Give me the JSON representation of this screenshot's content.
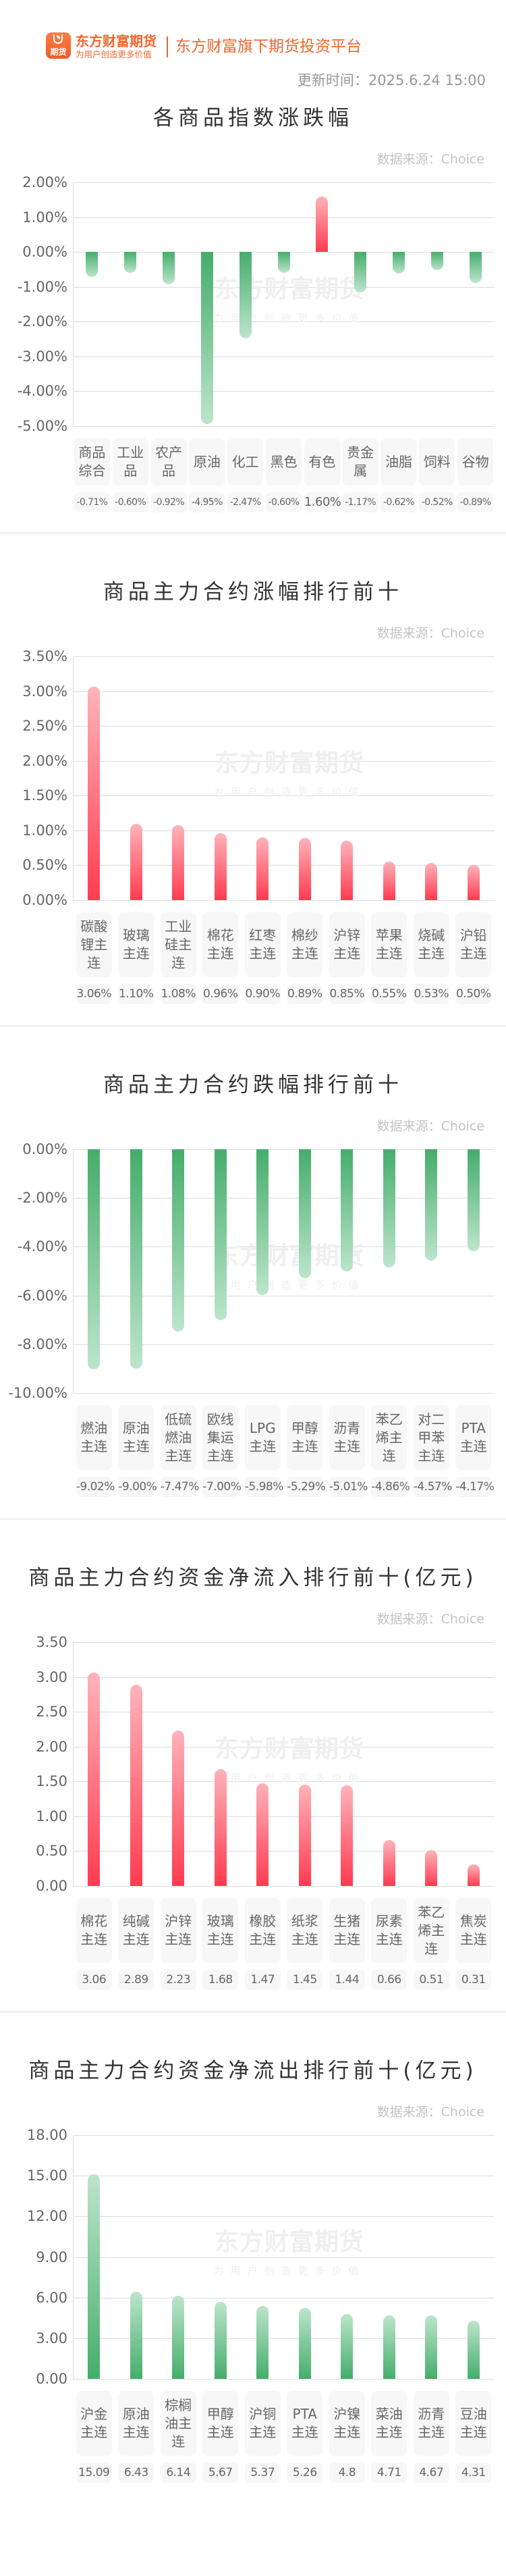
{
  "header": {
    "logo_icon_text": "期货",
    "brand_name": "东方财富期货",
    "brand_slogan": "为用户创造更多价值",
    "platform": "东方财富旗下期货投资平台",
    "update_time": "更新时间：2025.6.24 15:00"
  },
  "watermark": {
    "main": "东方财富期货",
    "sub": "为用户创造更多价值"
  },
  "colors": {
    "up": "#ff3b50",
    "up_light": "#ffb3bb",
    "down": "#45ad6b",
    "down_light": "#bde5cc",
    "brand": "#f2652f"
  },
  "chart_data": [
    {
      "type": "bar",
      "title": "各商品指数涨跌幅",
      "source": "数据来源：Choice",
      "ylim": [
        -5,
        2
      ],
      "yticks": [
        2,
        1,
        0,
        -1,
        -2,
        -3,
        -4,
        -5
      ],
      "ytick_labels": [
        "2.00%",
        "1.00%",
        "0.00%",
        "-1.00%",
        "-2.00%",
        "-3.00%",
        "-4.00%",
        "-5.00%"
      ],
      "categories": [
        "商品综合",
        "工业品",
        "农产品",
        "原油",
        "化工",
        "黑色",
        "有色",
        "贵金属",
        "油脂",
        "饲料",
        "谷物"
      ],
      "values": [
        -0.71,
        -0.6,
        -0.92,
        -4.95,
        -2.47,
        -0.6,
        1.6,
        -1.17,
        -0.62,
        -0.52,
        -0.89
      ],
      "value_labels": [
        "-0.71%",
        "-0.60%",
        "-0.92%",
        "-4.95%",
        "-2.47%",
        "-0.60%",
        "1.60%",
        "-1.17%",
        "-0.62%",
        "-0.52%",
        "-0.89%"
      ],
      "grid": true
    },
    {
      "type": "bar",
      "title": "商品主力合约涨幅排行前十",
      "source": "数据来源：Choice",
      "ylim": [
        0,
        3.5
      ],
      "yticks": [
        3.5,
        3,
        2.5,
        2,
        1.5,
        1,
        0.5,
        0
      ],
      "ytick_labels": [
        "3.50%",
        "3.00%",
        "2.50%",
        "2.00%",
        "1.50%",
        "1.00%",
        "0.50%",
        "0.00%"
      ],
      "categories": [
        "碳酸锂主连",
        "玻璃主连",
        "工业硅主连",
        "棉花主连",
        "红枣主连",
        "棉纱主连",
        "沪锌主连",
        "苹果主连",
        "烧碱主连",
        "沪铅主连"
      ],
      "values": [
        3.06,
        1.1,
        1.08,
        0.96,
        0.9,
        0.89,
        0.85,
        0.55,
        0.53,
        0.5
      ],
      "value_labels": [
        "3.06%",
        "1.10%",
        "1.08%",
        "0.96%",
        "0.90%",
        "0.89%",
        "0.85%",
        "0.55%",
        "0.53%",
        "0.50%"
      ],
      "grid": true
    },
    {
      "type": "bar",
      "title": "商品主力合约跌幅排行前十",
      "source": "数据来源：Choice",
      "ylim": [
        -10,
        0
      ],
      "yticks": [
        0,
        -2,
        -4,
        -6,
        -8,
        -10
      ],
      "ytick_labels": [
        "0.00%",
        "-2.00%",
        "-4.00%",
        "-6.00%",
        "-8.00%",
        "-10.00%"
      ],
      "categories": [
        "燃油主连",
        "原油主连",
        "低硫燃油主连",
        "欧线集运主连",
        "LPG主连",
        "甲醇主连",
        "沥青主连",
        "苯乙烯主连",
        "对二甲苯主连",
        "PTA主连"
      ],
      "values": [
        -9.02,
        -9.0,
        -7.47,
        -7.0,
        -5.98,
        -5.29,
        -5.01,
        -4.86,
        -4.57,
        -4.17
      ],
      "value_labels": [
        "-9.02%",
        "-9.00%",
        "-7.47%",
        "-7.00%",
        "-5.98%",
        "-5.29%",
        "-5.01%",
        "-4.86%",
        "-4.57%",
        "-4.17%"
      ],
      "grid": true
    },
    {
      "type": "bar",
      "title": "商品主力合约资金净流入排行前十(亿元)",
      "source": "数据来源：Choice",
      "ylim": [
        0,
        3.5
      ],
      "yticks": [
        3.5,
        3,
        2.5,
        2,
        1.5,
        1,
        0.5,
        0
      ],
      "ytick_labels": [
        "3.50",
        "3.00",
        "2.50",
        "2.00",
        "1.50",
        "1.00",
        "0.50",
        "0.00"
      ],
      "categories": [
        "棉花主连",
        "纯碱主连",
        "沪锌主连",
        "玻璃主连",
        "橡胶主连",
        "纸浆主连",
        "生猪主连",
        "尿素主连",
        "苯乙烯主连",
        "焦炭主连"
      ],
      "values": [
        3.06,
        2.89,
        2.23,
        1.68,
        1.47,
        1.45,
        1.44,
        0.66,
        0.51,
        0.31
      ],
      "value_labels": [
        "3.06",
        "2.89",
        "2.23",
        "1.68",
        "1.47",
        "1.45",
        "1.44",
        "0.66",
        "0.51",
        "0.31"
      ],
      "grid": true
    },
    {
      "type": "bar",
      "title": "商品主力合约资金净流出排行前十(亿元)",
      "source": "数据来源：Choice",
      "ylim": [
        0,
        18
      ],
      "yticks": [
        18,
        15,
        12,
        9,
        6,
        3,
        0
      ],
      "ytick_labels": [
        "18.00",
        "15.00",
        "12.00",
        "9.00",
        "6.00",
        "3.00",
        "0.00"
      ],
      "categories": [
        "沪金主连",
        "原油主连",
        "棕榈油主连",
        "甲醇主连",
        "沪铜主连",
        "PTA主连",
        "沪镍主连",
        "菜油主连",
        "沥青主连",
        "豆油主连"
      ],
      "values": [
        15.09,
        6.43,
        6.14,
        5.67,
        5.37,
        5.26,
        4.8,
        4.71,
        4.67,
        4.31
      ],
      "value_labels": [
        "15.09",
        "6.43",
        "6.14",
        "5.67",
        "5.37",
        "5.26",
        "4.8",
        "4.71",
        "4.67",
        "4.31"
      ],
      "bar_color": "down",
      "grid": true
    }
  ]
}
